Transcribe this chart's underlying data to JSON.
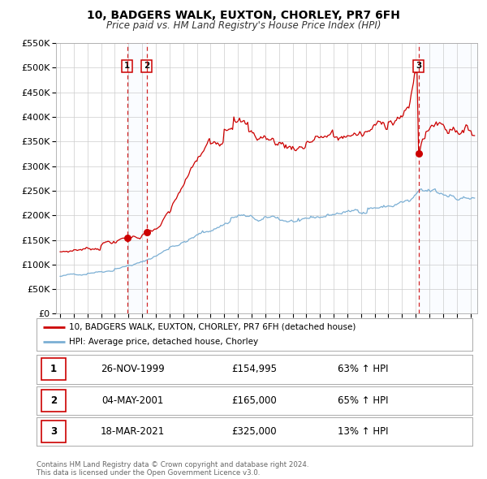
{
  "title": "10, BADGERS WALK, EUXTON, CHORLEY, PR7 6FH",
  "subtitle": "Price paid vs. HM Land Registry's House Price Index (HPI)",
  "ylim": [
    0,
    550000
  ],
  "yticks": [
    0,
    50000,
    100000,
    150000,
    200000,
    250000,
    300000,
    350000,
    400000,
    450000,
    500000,
    550000
  ],
  "ytick_labels": [
    "£0",
    "£50K",
    "£100K",
    "£150K",
    "£200K",
    "£250K",
    "£300K",
    "£350K",
    "£400K",
    "£450K",
    "£500K",
    "£550K"
  ],
  "xlim_start": 1994.7,
  "xlim_end": 2025.5,
  "xticks": [
    1995,
    1996,
    1997,
    1998,
    1999,
    2000,
    2001,
    2002,
    2003,
    2004,
    2005,
    2006,
    2007,
    2008,
    2009,
    2010,
    2011,
    2012,
    2013,
    2014,
    2015,
    2016,
    2017,
    2018,
    2019,
    2020,
    2021,
    2022,
    2023,
    2024,
    2025
  ],
  "sale_color": "#cc0000",
  "hpi_color": "#7bafd4",
  "sale_dates": [
    1999.9,
    2001.34,
    2021.21
  ],
  "sale_prices": [
    154995,
    165000,
    325000
  ],
  "transaction_labels": [
    "1",
    "2",
    "3"
  ],
  "legend_sale_label": "10, BADGERS WALK, EUXTON, CHORLEY, PR7 6FH (detached house)",
  "legend_hpi_label": "HPI: Average price, detached house, Chorley",
  "table_rows": [
    {
      "num": "1",
      "date": "26-NOV-1999",
      "price": "£154,995",
      "change": "63% ↑ HPI"
    },
    {
      "num": "2",
      "date": "04-MAY-2001",
      "price": "£165,000",
      "change": "65% ↑ HPI"
    },
    {
      "num": "3",
      "date": "18-MAR-2021",
      "price": "£325,000",
      "change": "13% ↑ HPI"
    }
  ],
  "footer": "Contains HM Land Registry data © Crown copyright and database right 2024.\nThis data is licensed under the Open Government Licence v3.0.",
  "background_color": "#ffffff",
  "grid_color": "#cccccc",
  "shade_color": "#ddeeff"
}
